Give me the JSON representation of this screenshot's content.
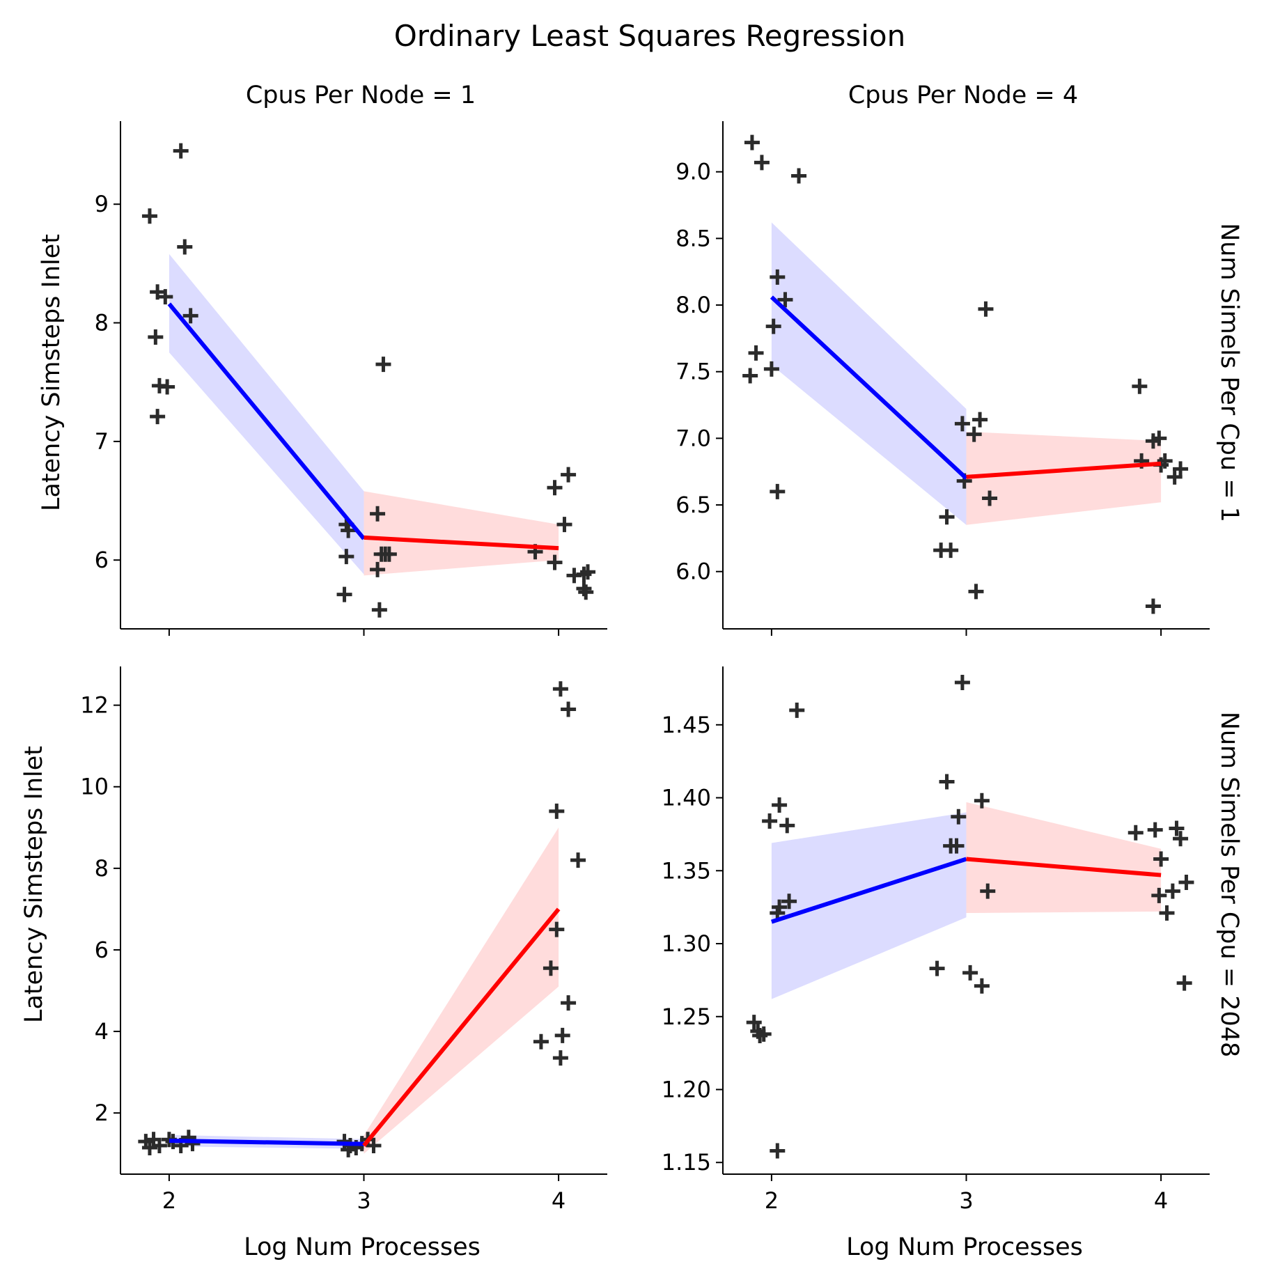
{
  "chart_data": {
    "type": "scatter",
    "title": "Ordinary Least Squares Regression",
    "xlabel": "Log Num Processes",
    "ylabel": "Latency Simsteps Inlet",
    "column_titles": [
      "Cpus Per Node = 1",
      "Cpus Per Node = 4"
    ],
    "row_titles": [
      "Num Simels Per Cpu = 1",
      "Num Simels Per Cpu = 2048"
    ],
    "xlim": [
      1.75,
      4.25
    ],
    "xticks": [
      2,
      3,
      4
    ],
    "colors": {
      "points": "#2b2b2b",
      "fit_low": "#0000ff",
      "fit_high": "#ff0000",
      "band_low": "#d8d8ff",
      "band_high": "#ffd8d8"
    },
    "panels": [
      {
        "column": "Cpus Per Node = 1",
        "row": "Num Simels Per Cpu = 1",
        "ylim": [
          5.42,
          9.7
        ],
        "yticks": [
          6,
          7,
          8,
          9
        ],
        "points": [
          [
            1.9,
            8.9
          ],
          [
            1.94,
            8.26
          ],
          [
            1.98,
            8.22
          ],
          [
            2.06,
            9.45
          ],
          [
            2.08,
            8.64
          ],
          [
            2.11,
            8.06
          ],
          [
            1.93,
            7.88
          ],
          [
            1.95,
            7.47
          ],
          [
            1.99,
            7.46
          ],
          [
            1.94,
            7.21
          ],
          [
            2.91,
            6.3
          ],
          [
            2.92,
            6.25
          ],
          [
            2.91,
            6.03
          ],
          [
            2.9,
            5.71
          ],
          [
            3.07,
            6.39
          ],
          [
            3.07,
            5.92
          ],
          [
            3.09,
            6.05
          ],
          [
            3.11,
            6.05
          ],
          [
            3.13,
            6.05
          ],
          [
            3.08,
            5.58
          ],
          [
            3.1,
            7.65
          ],
          [
            3.88,
            6.07
          ],
          [
            3.98,
            6.61
          ],
          [
            4.05,
            6.72
          ],
          [
            4.03,
            6.3
          ],
          [
            3.98,
            5.98
          ],
          [
            4.08,
            5.87
          ],
          [
            4.13,
            5.88
          ],
          [
            4.15,
            5.9
          ],
          [
            4.13,
            5.76
          ],
          [
            4.14,
            5.73
          ]
        ],
        "fits": [
          {
            "x": [
              2,
              3
            ],
            "y": [
              8.16,
              6.18
            ],
            "lower": [
              7.75,
              5.88
            ],
            "upper": [
              8.58,
              6.58
            ]
          },
          {
            "x": [
              3,
              4
            ],
            "y": [
              6.19,
              6.1
            ],
            "lower": [
              5.87,
              6.0
            ],
            "upper": [
              6.58,
              6.3
            ]
          }
        ]
      },
      {
        "column": "Cpus Per Node = 4",
        "row": "Num Simels Per Cpu = 1",
        "ylim": [
          5.57,
          9.38
        ],
        "yticks": [
          6.0,
          6.5,
          7.0,
          7.5,
          8.0,
          8.5,
          9.0
        ],
        "points": [
          [
            1.9,
            9.22
          ],
          [
            1.95,
            9.07
          ],
          [
            2.14,
            8.97
          ],
          [
            2.03,
            8.21
          ],
          [
            2.07,
            8.04
          ],
          [
            2.01,
            7.84
          ],
          [
            1.92,
            7.64
          ],
          [
            2.0,
            7.52
          ],
          [
            1.89,
            7.47
          ],
          [
            2.03,
            6.6
          ],
          [
            3.1,
            7.97
          ],
          [
            2.98,
            7.11
          ],
          [
            3.07,
            7.14
          ],
          [
            3.04,
            7.03
          ],
          [
            2.99,
            6.68
          ],
          [
            3.12,
            6.55
          ],
          [
            2.9,
            6.41
          ],
          [
            2.87,
            6.16
          ],
          [
            2.92,
            6.16
          ],
          [
            3.05,
            5.85
          ],
          [
            3.89,
            7.39
          ],
          [
            3.9,
            6.83
          ],
          [
            3.96,
            6.98
          ],
          [
            3.99,
            7.0
          ],
          [
            4.0,
            6.8
          ],
          [
            4.02,
            6.83
          ],
          [
            4.07,
            6.71
          ],
          [
            4.1,
            6.77
          ],
          [
            3.96,
            5.74
          ]
        ],
        "fits": [
          {
            "x": [
              2,
              3
            ],
            "y": [
              8.06,
              6.7
            ],
            "lower": [
              7.55,
              6.35
            ],
            "upper": [
              8.62,
              7.22
            ]
          },
          {
            "x": [
              3,
              4
            ],
            "y": [
              6.71,
              6.81
            ],
            "lower": [
              6.35,
              6.52
            ],
            "upper": [
              7.05,
              6.98
            ]
          }
        ]
      },
      {
        "column": "Cpus Per Node = 1",
        "row": "Num Simels Per Cpu = 2048",
        "ylim": [
          0.5,
          12.95
        ],
        "yticks": [
          2,
          4,
          6,
          8,
          10,
          12
        ],
        "points": [
          [
            1.88,
            1.3
          ],
          [
            1.92,
            1.35
          ],
          [
            1.95,
            1.2
          ],
          [
            2.02,
            1.3
          ],
          [
            2.06,
            1.2
          ],
          [
            2.1,
            1.4
          ],
          [
            2.12,
            1.25
          ],
          [
            1.9,
            1.15
          ],
          [
            2.0,
            1.35
          ],
          [
            2.9,
            1.3
          ],
          [
            2.93,
            1.2
          ],
          [
            2.96,
            1.15
          ],
          [
            2.99,
            1.25
          ],
          [
            3.02,
            1.35
          ],
          [
            3.05,
            1.2
          ],
          [
            2.92,
            1.1
          ],
          [
            4.01,
            12.4
          ],
          [
            4.05,
            11.9
          ],
          [
            3.99,
            9.4
          ],
          [
            4.1,
            8.2
          ],
          [
            3.99,
            6.5
          ],
          [
            3.96,
            5.55
          ],
          [
            4.05,
            4.7
          ],
          [
            3.91,
            3.75
          ],
          [
            4.02,
            3.9
          ],
          [
            4.01,
            3.35
          ]
        ],
        "fits": [
          {
            "x": [
              2,
              3
            ],
            "y": [
              1.32,
              1.24
            ],
            "lower": [
              1.18,
              1.12
            ],
            "upper": [
              1.46,
              1.36
            ]
          },
          {
            "x": [
              3,
              4
            ],
            "y": [
              1.2,
              7.0
            ],
            "lower": [
              1.0,
              5.1
            ],
            "upper": [
              1.45,
              9.0
            ]
          }
        ]
      },
      {
        "column": "Cpus Per Node = 4",
        "row": "Num Simels Per Cpu = 2048",
        "ylim": [
          1.142,
          1.49
        ],
        "yticks": [
          1.15,
          1.2,
          1.25,
          1.3,
          1.35,
          1.4,
          1.45
        ],
        "points": [
          [
            2.13,
            1.46
          ],
          [
            2.04,
            1.395
          ],
          [
            1.99,
            1.384
          ],
          [
            2.08,
            1.381
          ],
          [
            2.09,
            1.329
          ],
          [
            2.04,
            1.325
          ],
          [
            2.03,
            1.321
          ],
          [
            1.91,
            1.246
          ],
          [
            1.93,
            1.24
          ],
          [
            1.96,
            1.238
          ],
          [
            1.94,
            1.237
          ],
          [
            2.03,
            1.158
          ],
          [
            2.98,
            1.479
          ],
          [
            2.9,
            1.411
          ],
          [
            3.08,
            1.398
          ],
          [
            2.96,
            1.387
          ],
          [
            2.92,
            1.367
          ],
          [
            2.95,
            1.367
          ],
          [
            3.11,
            1.336
          ],
          [
            2.85,
            1.283
          ],
          [
            3.02,
            1.28
          ],
          [
            3.08,
            1.271
          ],
          [
            3.87,
            1.376
          ],
          [
            3.97,
            1.378
          ],
          [
            4.08,
            1.379
          ],
          [
            4.1,
            1.372
          ],
          [
            4.0,
            1.358
          ],
          [
            4.13,
            1.342
          ],
          [
            4.06,
            1.336
          ],
          [
            3.99,
            1.333
          ],
          [
            4.03,
            1.321
          ],
          [
            4.12,
            1.273
          ]
        ],
        "fits": [
          {
            "x": [
              2,
              3
            ],
            "y": [
              1.315,
              1.358
            ],
            "lower": [
              1.262,
              1.318
            ],
            "upper": [
              1.369,
              1.39
            ]
          },
          {
            "x": [
              3,
              4
            ],
            "y": [
              1.358,
              1.347
            ],
            "lower": [
              1.321,
              1.322
            ],
            "upper": [
              1.397,
              1.365
            ]
          }
        ]
      }
    ]
  }
}
